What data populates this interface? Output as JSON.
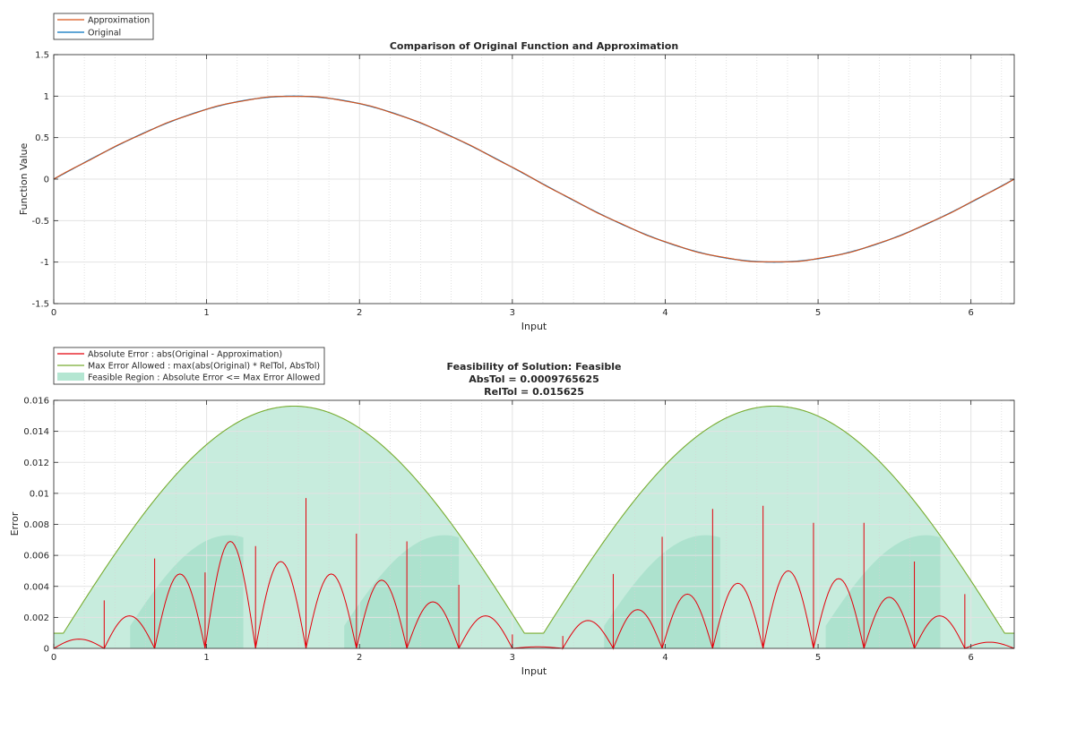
{
  "chart_data": [
    {
      "type": "line",
      "title": "Comparison of Original Function and Approximation",
      "xlabel": "Input",
      "ylabel": "Function Value",
      "xlim": [
        0,
        6.2832
      ],
      "ylim": [
        -1.5,
        1.5
      ],
      "xticks": [
        0,
        1,
        2,
        3,
        4,
        5,
        6
      ],
      "yticks": [
        -1.5,
        -1,
        -0.5,
        0,
        0.5,
        1,
        1.5
      ],
      "grid": true,
      "legend_position": "top-left, outside",
      "series": [
        {
          "name": "Approximation",
          "color": "#d95319",
          "function": "sin(x)",
          "x_range": [
            0,
            6.2832
          ]
        },
        {
          "name": "Original",
          "color": "#0072bd",
          "function": "sin(x)",
          "x_range": [
            0,
            6.2832
          ]
        }
      ]
    },
    {
      "type": "area",
      "title": "Feasibility of Solution: Feasible",
      "subtitle": [
        "AbsTol = 0.0009765625",
        "RelTol = 0.015625"
      ],
      "xlabel": "Input",
      "ylabel": "Error",
      "xlim": [
        0,
        6.2832
      ],
      "ylim": [
        0,
        0.016
      ],
      "xticks": [
        0,
        1,
        2,
        3,
        4,
        5,
        6
      ],
      "yticks": [
        0,
        0.002,
        0.004,
        0.006,
        0.008,
        0.01,
        0.012,
        0.014,
        0.016
      ],
      "grid": true,
      "legend_position": "top-left, outside",
      "abs_tol": 0.0009765625,
      "rel_tol": 0.015625,
      "series": [
        {
          "name": "Absolute Error : abs(Original - Approximation)",
          "color": "#e3000b",
          "peaks": [
            [
              0.33,
              0.0031
            ],
            [
              0.66,
              0.0058
            ],
            [
              0.99,
              0.0049
            ],
            [
              1.32,
              0.0066
            ],
            [
              1.65,
              0.0097
            ],
            [
              1.98,
              0.0074
            ],
            [
              2.31,
              0.0069
            ],
            [
              2.65,
              0.0041
            ],
            [
              3.0,
              0.0009
            ],
            [
              3.33,
              0.0008
            ],
            [
              3.66,
              0.0048
            ],
            [
              3.98,
              0.0072
            ],
            [
              4.31,
              0.009
            ],
            [
              4.64,
              0.0092
            ],
            [
              4.97,
              0.0081
            ],
            [
              5.3,
              0.0081
            ],
            [
              5.63,
              0.0056
            ],
            [
              5.96,
              0.0035
            ]
          ],
          "lobe_peaks": [
            [
              0.08,
              0.0006
            ],
            [
              0.48,
              0.0021
            ],
            [
              0.83,
              0.0048
            ],
            [
              1.16,
              0.0069
            ],
            [
              1.49,
              0.0056
            ],
            [
              1.81,
              0.0048
            ],
            [
              2.14,
              0.0044
            ],
            [
              2.48,
              0.003
            ],
            [
              2.81,
              0.0021
            ],
            [
              3.13,
              0.0001
            ],
            [
              3.46,
              0.0018
            ],
            [
              3.8,
              0.0025
            ],
            [
              4.13,
              0.0035
            ],
            [
              4.46,
              0.0042
            ],
            [
              4.8,
              0.005
            ],
            [
              5.13,
              0.0045
            ],
            [
              5.46,
              0.0033
            ],
            [
              5.79,
              0.0021
            ],
            [
              6.13,
              0.0004
            ]
          ]
        },
        {
          "name": "Max Error Allowed : max(abs(Original) * RelTol, AbsTol)",
          "color": "#77ac30",
          "function": "max(abs(sin(x)) * 0.015625, 0.0009765625)"
        },
        {
          "name": "Feasible Region : Absolute Error <= Max Error Allowed",
          "color": "#b4e6d2"
        }
      ]
    }
  ]
}
